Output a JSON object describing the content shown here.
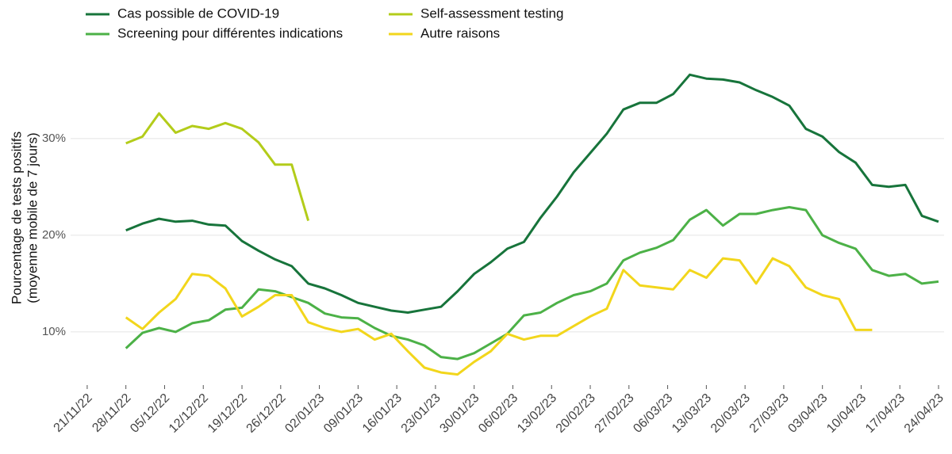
{
  "chart_data": {
    "type": "line",
    "y_label": [
      "Pourcentage de tests positifs",
      "(moyenne mobile de 7 jours)"
    ],
    "x": [
      "28/11/22",
      "01/12/22",
      "04/12/22",
      "07/12/22",
      "10/12/22",
      "13/12/22",
      "16/12/22",
      "19/12/22",
      "22/12/22",
      "25/12/22",
      "28/12/22",
      "31/12/22",
      "03/01/23",
      "06/01/23",
      "09/01/23",
      "12/01/23",
      "15/01/23",
      "18/01/23",
      "21/01/23",
      "24/01/23",
      "27/01/23",
      "30/01/23",
      "02/02/23",
      "05/02/23",
      "08/02/23",
      "11/02/23",
      "14/02/23",
      "17/02/23",
      "20/02/23",
      "23/02/23",
      "26/02/23",
      "01/03/23",
      "04/03/23",
      "07/03/23",
      "10/03/23",
      "13/03/23",
      "16/03/23",
      "19/03/23",
      "22/03/23",
      "25/03/23",
      "28/03/23",
      "31/03/23",
      "03/04/23",
      "06/04/23",
      "09/04/23",
      "12/04/23",
      "15/04/23",
      "18/04/23",
      "21/04/23",
      "24/04/23"
    ],
    "series": [
      {
        "name": "Cas possible de COVID-19",
        "color": "#17743b",
        "values": [
          20.5,
          21.2,
          21.7,
          21.4,
          21.5,
          21.1,
          21.0,
          19.4,
          18.4,
          17.5,
          16.8,
          15.0,
          14.5,
          13.8,
          13.0,
          12.6,
          12.2,
          12.0,
          12.3,
          12.6,
          14.2,
          16.0,
          17.2,
          18.6,
          19.3,
          21.8,
          24.0,
          26.5,
          28.5,
          30.5,
          33.0,
          33.7,
          33.7,
          34.6,
          36.6,
          36.2,
          36.1,
          35.8,
          35.0,
          34.3,
          33.4,
          31.0,
          30.2,
          28.6,
          27.5,
          25.2,
          25.0,
          25.2,
          22.0,
          21.4
        ]
      },
      {
        "name": "Screening pour différentes indications",
        "color": "#4cb147",
        "values": [
          8.3,
          9.9,
          10.4,
          10.0,
          10.9,
          11.2,
          12.3,
          12.5,
          14.4,
          14.2,
          13.6,
          13.0,
          11.9,
          11.5,
          11.4,
          10.4,
          9.6,
          9.2,
          8.6,
          7.4,
          7.2,
          7.8,
          8.8,
          9.8,
          11.7,
          12.0,
          13.0,
          13.8,
          14.2,
          15.0,
          17.4,
          18.2,
          18.7,
          19.5,
          21.6,
          22.6,
          21.0,
          22.2,
          22.2,
          22.6,
          22.9,
          22.6,
          20.0,
          19.2,
          18.6,
          16.4,
          15.8,
          16.0,
          15.0,
          15.2
        ]
      },
      {
        "name": "Self-assessment testing",
        "color": "#b3cc1a",
        "values": [
          29.5,
          30.2,
          32.6,
          30.6,
          31.3,
          31.0,
          31.6,
          31.0,
          29.6,
          27.3,
          27.3,
          21.5,
          null,
          null,
          null,
          null,
          null,
          null,
          null,
          null,
          null,
          null,
          null,
          null,
          null,
          null,
          null,
          null,
          null,
          null,
          null,
          null,
          null,
          null,
          null,
          null,
          null,
          null,
          null,
          null,
          null,
          null,
          null,
          null,
          null,
          null,
          null,
          null,
          null,
          null
        ]
      },
      {
        "name": "Autre raisons",
        "color": "#f2d61c",
        "values": [
          11.5,
          10.3,
          12.0,
          13.4,
          16.0,
          15.8,
          14.5,
          11.6,
          12.6,
          13.8,
          13.8,
          11.0,
          10.4,
          10.0,
          10.3,
          9.2,
          9.8,
          8.0,
          6.3,
          5.8,
          5.6,
          6.9,
          8.0,
          9.8,
          9.2,
          9.6,
          9.6,
          10.6,
          11.6,
          12.4,
          16.4,
          14.8,
          14.6,
          14.4,
          16.4,
          15.6,
          17.6,
          17.4,
          15.0,
          17.6,
          16.8,
          14.6,
          13.8,
          13.4,
          10.2,
          10.2,
          null,
          null,
          null,
          null
        ]
      }
    ],
    "xlim": [
      "18/11/22",
      "25/04/23"
    ],
    "xticks": [
      "21/11/22",
      "28/11/22",
      "05/12/22",
      "12/12/22",
      "19/12/22",
      "26/12/22",
      "02/01/23",
      "09/01/23",
      "16/01/23",
      "23/01/23",
      "30/01/23",
      "06/02/23",
      "13/02/23",
      "20/02/23",
      "27/02/23",
      "06/03/23",
      "13/03/23",
      "20/03/23",
      "27/03/23",
      "03/04/23",
      "10/04/23",
      "17/04/23",
      "24/04/23"
    ],
    "ylim": [
      4.5,
      39
    ],
    "yticks": [
      {
        "value": 10,
        "label": "10%"
      },
      {
        "value": 20,
        "label": "20%"
      },
      {
        "value": 30,
        "label": "30%"
      }
    ],
    "grid": true,
    "legend": "top"
  }
}
